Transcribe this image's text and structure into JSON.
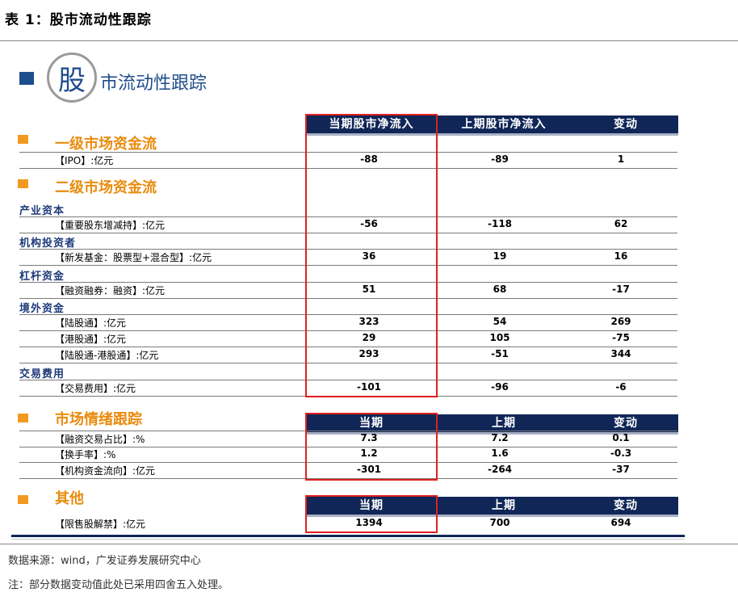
{
  "title": "表 1：股市流动性跟踪",
  "logo": {
    "char": "股",
    "rest": "市流动性跟踪"
  },
  "header_main": [
    "当期股市净流入",
    "上期股市净流入",
    "变动"
  ],
  "sections": {
    "primary": "一级市场资金流",
    "secondary": "二级市场资金流",
    "sentiment": "市场情绪跟踪",
    "other": "其他"
  },
  "subcats": {
    "industrial": "产业资本",
    "institutional": "机构投资者",
    "leverage": "杠杆资金",
    "foreign": "境外资金",
    "trading_fee": "交易费用"
  },
  "header_sentiment": [
    "当期",
    "上期",
    "变动"
  ],
  "header_other": [
    "当期",
    "上期",
    "变动"
  ],
  "rows": {
    "ipo": {
      "label": "【IPO】:亿元",
      "cur": "-88",
      "prev": "-89",
      "chg": "1"
    },
    "holdings": {
      "label": "【重要股东增减持】:亿元",
      "cur": "-56",
      "prev": "-118",
      "chg": "62"
    },
    "new_funds": {
      "label": "【新发基金：股票型+混合型】:亿元",
      "cur": "36",
      "prev": "19",
      "chg": "16"
    },
    "margin": {
      "label": "【融资融券：融资】:亿元",
      "cur": "51",
      "prev": "68",
      "chg": "-17"
    },
    "hk_to_a": {
      "label": "【陆股通】:亿元",
      "cur": "323",
      "prev": "54",
      "chg": "269"
    },
    "a_to_hk": {
      "label": "【港股通】:亿元",
      "cur": "29",
      "prev": "105",
      "chg": "-75"
    },
    "net_connect": {
      "label": "【陆股通-港股通】:亿元",
      "cur": "293",
      "prev": "-51",
      "chg": "344"
    },
    "fees": {
      "label": "【交易费用】:亿元",
      "cur": "-101",
      "prev": "-96",
      "chg": "-6"
    },
    "margin_ratio": {
      "label": "【融资交易占比】:%",
      "cur": "7.3",
      "prev": "7.2",
      "chg": "0.1"
    },
    "turnover": {
      "label": "【换手率】:%",
      "cur": "1.2",
      "prev": "1.6",
      "chg": "-0.3"
    },
    "inst_flow": {
      "label": "【机构资金流向】:亿元",
      "cur": "-301",
      "prev": "-264",
      "chg": "-37"
    },
    "lockup": {
      "label": "【限售股解禁】:亿元",
      "cur": "1394",
      "prev": "700",
      "chg": "694"
    }
  },
  "notes": {
    "source": "数据来源：wind，广发证券发展研究中心",
    "note": "注：部分数据变动值此处已采用四舍五入处理。"
  },
  "colors": {
    "navy": "#0f2657",
    "orange": "#e98c0e",
    "highlight": "#e0201e",
    "logo_blue": "#1f4e8c"
  }
}
